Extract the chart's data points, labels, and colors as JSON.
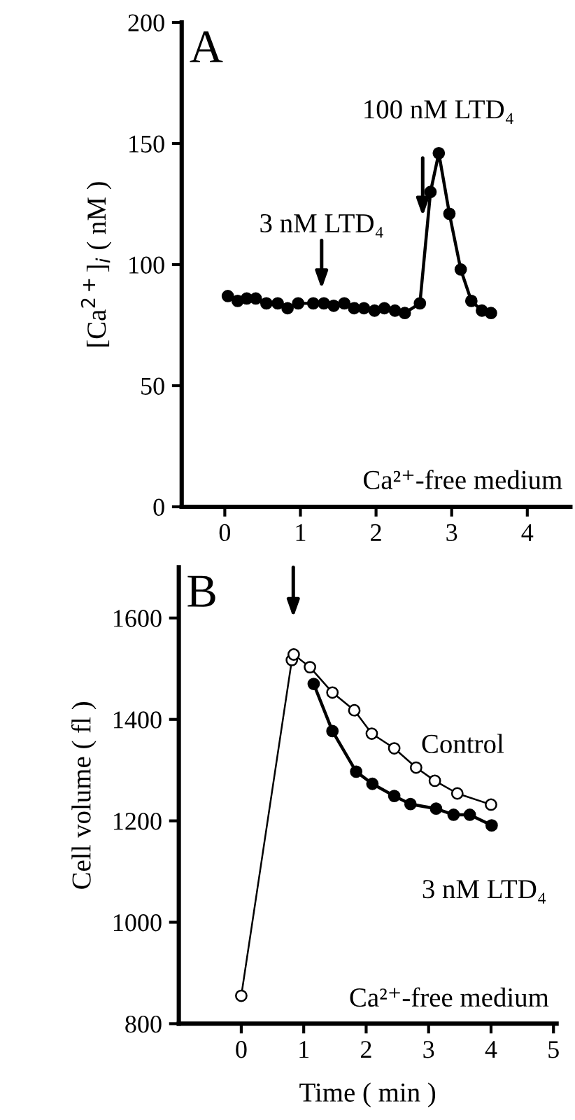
{
  "chart_data": [
    {
      "type": "line",
      "title": "A",
      "ylabel": "[Ca$^{2+}$]$_{i}$ ( nM )",
      "xlim": [
        -0.57,
        4.57
      ],
      "xticks": [
        0,
        1,
        2,
        3,
        4
      ],
      "ylim": [
        0,
        200
      ],
      "yticks": [
        0,
        50,
        100,
        150,
        200
      ],
      "marker": "circle",
      "grid": false,
      "legend": false,
      "series": [
        {
          "color": "#000000",
          "x": [
            0.04,
            0.17,
            0.29,
            0.41,
            0.55,
            0.7,
            0.83,
            0.97,
            1.17,
            1.31,
            1.44,
            1.58,
            1.71,
            1.84,
            1.98,
            2.11,
            2.25,
            2.38,
            2.58,
            2.72,
            2.83,
            2.97,
            3.12,
            3.26,
            3.4,
            3.52
          ],
          "values": [
            87,
            85,
            86,
            86,
            84,
            84,
            82,
            84,
            84,
            84,
            83,
            84,
            82,
            82,
            81,
            82,
            81,
            80,
            84,
            130,
            146,
            121,
            98,
            85,
            81,
            80
          ]
        }
      ],
      "annotations": [
        "3 nM LTD₄",
        "100 nM LTD₄",
        "Ca²⁺-free medium"
      ]
    },
    {
      "type": "line",
      "title": "B",
      "xlabel": "Time ( min )",
      "ylabel": "Cell volume ( fl )",
      "xlim": [
        -1,
        5.05
      ],
      "xticks": [
        0,
        1,
        2,
        3,
        4,
        5
      ],
      "ylim": [
        800,
        1700
      ],
      "yticks": [
        800,
        1000,
        1200,
        1400,
        1600
      ],
      "grid": false,
      "legend": false,
      "series": [
        {
          "name": "3 nM LTD₄",
          "color": "#000000",
          "marker": "circle",
          "x": [
            1.16,
            1.46,
            1.84,
            2.1,
            2.45,
            2.71,
            3.12,
            3.4,
            3.66,
            4.01
          ],
          "values": [
            1470,
            1377,
            1297,
            1273,
            1249,
            1233,
            1224,
            1212,
            1212,
            1191
          ]
        },
        {
          "name": "Control",
          "color": "#ffffff",
          "marker": "circle",
          "x": [
            0,
            0.81,
            0.84,
            1.1,
            1.46,
            1.81,
            2.09,
            2.45,
            2.8,
            3.1,
            3.46,
            4.0
          ],
          "values": [
            855,
            1517,
            1528,
            1503,
            1453,
            1418,
            1372,
            1343,
            1305,
            1279,
            1254,
            1232
          ]
        }
      ],
      "annotations": [
        "Ca²⁺-free medium"
      ]
    }
  ]
}
